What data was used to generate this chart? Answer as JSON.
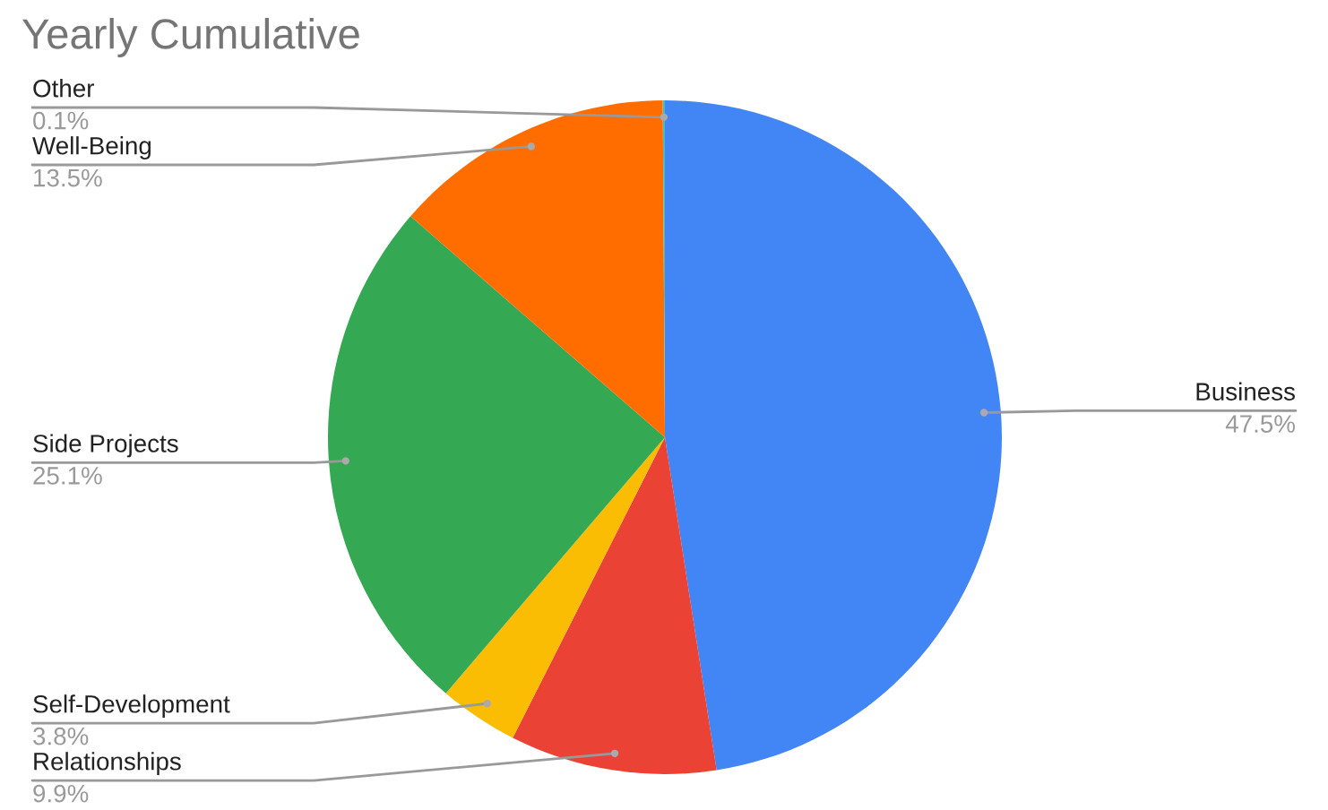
{
  "chart_data": {
    "type": "pie",
    "title": "Yearly Cumulative",
    "categories": [
      "Business",
      "Relationships",
      "Self-Development",
      "Side Projects",
      "Well-Being",
      "Other"
    ],
    "values": [
      47.5,
      9.9,
      3.8,
      25.1,
      13.5,
      0.1
    ],
    "colors": [
      "#4285f4",
      "#ea4335",
      "#fbbc04",
      "#34a853",
      "#ff6d01",
      "#46bdc6"
    ],
    "value_labels": [
      "47.5%",
      "9.9%",
      "3.8%",
      "25.1%",
      "13.5%",
      "0.1%"
    ],
    "legend": false
  }
}
